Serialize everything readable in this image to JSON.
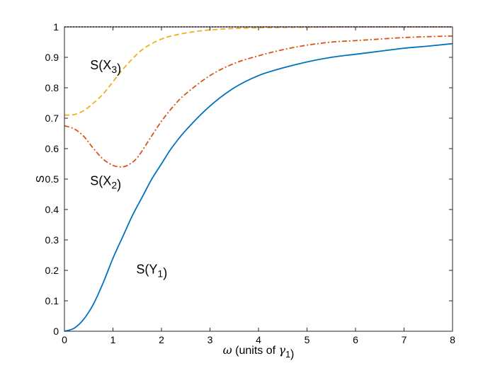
{
  "chart_data": {
    "type": "line",
    "xlabel": "ω (units of γ1)",
    "ylabel": "S",
    "xlim": [
      0,
      8
    ],
    "ylim": [
      0,
      1
    ],
    "xticks": [
      0,
      1,
      2,
      3,
      4,
      5,
      6,
      7,
      8
    ],
    "yticks": [
      0,
      0.1,
      0.2,
      0.3,
      0.4,
      0.5,
      0.6,
      0.7,
      0.8,
      0.9,
      1
    ],
    "grid": false,
    "box": true,
    "annotations": [
      {
        "text": "S(X3)",
        "x": 0.85,
        "y": 0.86
      },
      {
        "text": "S(X2)",
        "x": 0.85,
        "y": 0.48
      },
      {
        "text": "S(Y1)",
        "x": 1.8,
        "y": 0.19
      }
    ],
    "series": [
      {
        "name": "S(Y1)",
        "color": "#0072bd",
        "style": "solid",
        "x": [
          0,
          0.2,
          0.4,
          0.6,
          0.8,
          1.0,
          1.2,
          1.4,
          1.6,
          1.8,
          2.0,
          2.2,
          2.5,
          3.0,
          3.5,
          4.0,
          4.5,
          5.0,
          5.5,
          6.0,
          6.5,
          7.0,
          7.5,
          8.0
        ],
        "y": [
          0.0,
          0.01,
          0.04,
          0.09,
          0.16,
          0.24,
          0.31,
          0.38,
          0.44,
          0.5,
          0.55,
          0.6,
          0.66,
          0.74,
          0.8,
          0.84,
          0.865,
          0.885,
          0.9,
          0.91,
          0.92,
          0.93,
          0.937,
          0.945
        ]
      },
      {
        "name": "S(X2)",
        "color": "#d95319",
        "style": "dashdot",
        "x": [
          0,
          0.2,
          0.4,
          0.6,
          0.8,
          1.0,
          1.15,
          1.3,
          1.5,
          1.75,
          2.0,
          2.25,
          2.5,
          3.0,
          3.5,
          4.0,
          4.5,
          5.0,
          5.5,
          6.0,
          6.5,
          7.0,
          7.5,
          8.0
        ],
        "y": [
          0.675,
          0.665,
          0.64,
          0.6,
          0.565,
          0.545,
          0.54,
          0.545,
          0.57,
          0.63,
          0.69,
          0.74,
          0.78,
          0.84,
          0.88,
          0.905,
          0.925,
          0.94,
          0.95,
          0.955,
          0.96,
          0.965,
          0.968,
          0.97
        ]
      },
      {
        "name": "S(X3)",
        "color": "#edb120",
        "style": "dashed",
        "x": [
          0,
          0.2,
          0.4,
          0.6,
          0.8,
          1.0,
          1.2,
          1.4,
          1.6,
          1.8,
          2.0,
          2.2,
          2.5,
          2.8,
          3.0,
          3.5,
          4.0,
          4.5,
          5.0,
          6.0,
          7.0,
          8.0
        ],
        "y": [
          0.71,
          0.712,
          0.725,
          0.75,
          0.78,
          0.82,
          0.86,
          0.895,
          0.925,
          0.945,
          0.96,
          0.97,
          0.98,
          0.987,
          0.99,
          0.995,
          0.997,
          0.998,
          0.999,
          1.0,
          1.0,
          1.0
        ]
      },
      {
        "name": "",
        "color": "#7e2f8e",
        "style": "dotted",
        "x": [
          0,
          8
        ],
        "y": [
          1.0,
          1.0
        ]
      }
    ]
  }
}
